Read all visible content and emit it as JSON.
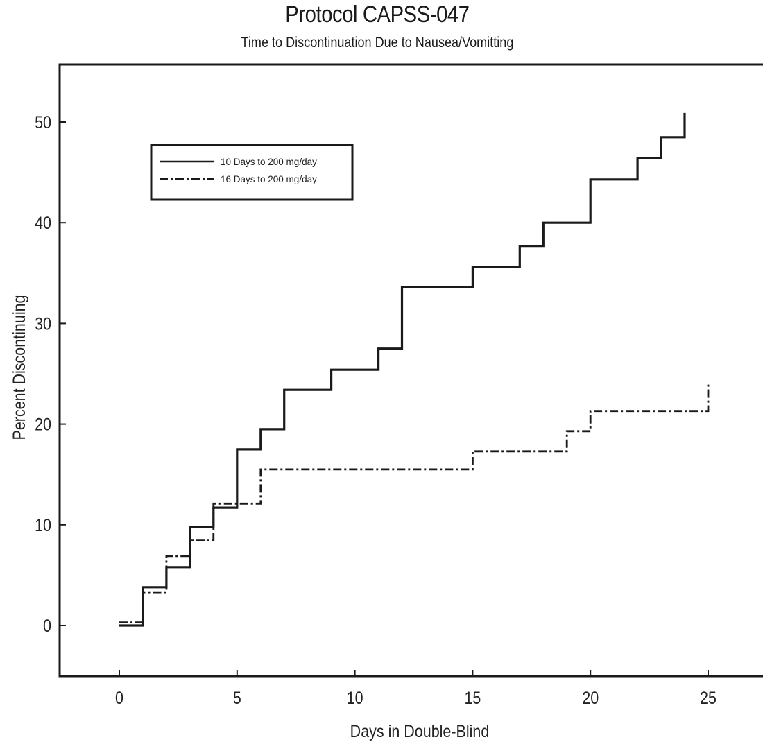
{
  "chart_data": {
    "type": "line",
    "step": true,
    "title": "Protocol CAPSS-047",
    "subtitle": "Time to Discontinuation Due to Nausea/Vomitting",
    "xlabel": "Days in Double-Blind",
    "ylabel": "Percent Discontinuing",
    "xlim": [
      -2.5,
      27
    ],
    "ylim": [
      -5,
      56
    ],
    "xticks": [
      0,
      5,
      10,
      15,
      20,
      25
    ],
    "yticks": [
      0,
      10,
      20,
      30,
      40,
      50
    ],
    "grid": false,
    "legend_position": "top-left",
    "series": [
      {
        "name": "10 Days to 200 mg/day",
        "line_style": "solid",
        "color": "#1a1a1a",
        "x": [
          0,
          1,
          1,
          2,
          2,
          3,
          3,
          4,
          4,
          5,
          5,
          6,
          6,
          7,
          7,
          9,
          9,
          11,
          11,
          12,
          12,
          15,
          15,
          17,
          17,
          18,
          18,
          20,
          20,
          22,
          22,
          23,
          23,
          24,
          24
        ],
        "y": [
          0,
          0,
          3.8,
          3.8,
          5.8,
          5.8,
          9.8,
          9.8,
          11.7,
          11.7,
          17.5,
          17.5,
          19.5,
          19.5,
          23.4,
          23.4,
          25.4,
          25.4,
          27.5,
          27.5,
          33.6,
          33.6,
          35.6,
          35.6,
          37.7,
          37.7,
          40.0,
          40.0,
          44.3,
          44.3,
          46.4,
          46.4,
          48.5,
          48.5,
          50.9
        ]
      },
      {
        "name": "16 Days to 200 mg/day",
        "line_style": "dash-dot",
        "color": "#1a1a1a",
        "x": [
          0,
          1,
          1,
          2,
          2,
          3,
          3,
          4,
          4,
          6,
          6,
          15,
          15,
          19,
          19,
          20,
          20,
          25,
          25
        ],
        "y": [
          0.3,
          0.3,
          3.3,
          3.3,
          6.9,
          6.9,
          8.5,
          8.5,
          12.1,
          12.1,
          15.5,
          15.5,
          17.3,
          17.3,
          19.3,
          19.3,
          21.3,
          21.3,
          24.0
        ]
      }
    ]
  }
}
